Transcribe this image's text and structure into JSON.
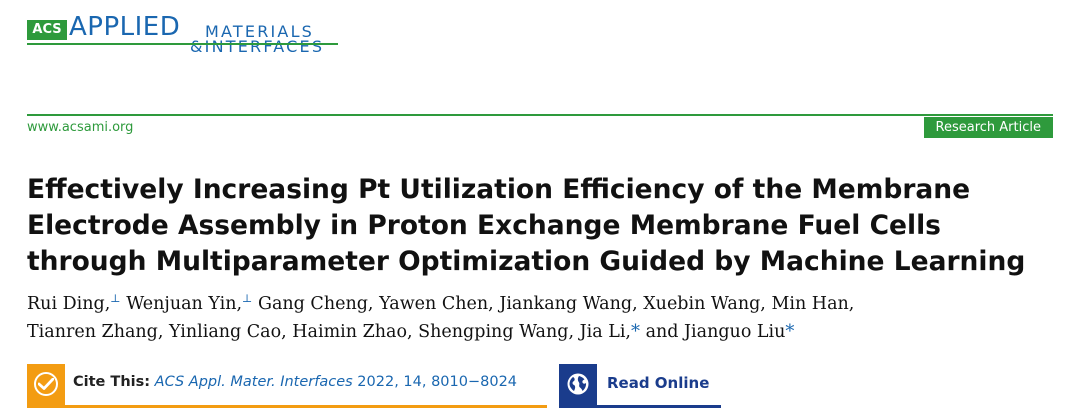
{
  "journal": {
    "badge": "ACS",
    "name_main": "APPLIED",
    "name_line1": "MATERIALS",
    "name_line2": "&INTERFACES",
    "brand_green": "#2e9a3c",
    "brand_blue": "#1a67b0"
  },
  "header": {
    "url": "www.acsami.org",
    "article_type": "Research Article"
  },
  "article": {
    "title_lines": [
      "Effectively Increasing Pt Utilization Efficiency of the Membrane",
      "Electrode Assembly in Proton Exchange Membrane Fuel Cells",
      "through Multiparameter Optimization Guided by Machine Learning"
    ],
    "authors": [
      {
        "name": "Rui Ding,",
        "mark": "⊥"
      },
      {
        "name": "Wenjuan Yin,",
        "mark": "⊥"
      },
      {
        "name": "Gang Cheng,",
        "mark": ""
      },
      {
        "name": "Yawen Chen,",
        "mark": ""
      },
      {
        "name": "Jiankang Wang,",
        "mark": ""
      },
      {
        "name": "Xuebin Wang,",
        "mark": ""
      },
      {
        "name": "Min Han,",
        "mark": ""
      },
      {
        "name": "Tianren Zhang,",
        "mark": ""
      },
      {
        "name": "Yinliang Cao,",
        "mark": ""
      },
      {
        "name": "Haimin Zhao,",
        "mark": ""
      },
      {
        "name": "Shengping Wang,",
        "mark": ""
      },
      {
        "name": "Jia Li,",
        "mark": "*"
      },
      {
        "name": "and Jianguo Liu",
        "mark": "*"
      }
    ]
  },
  "cite": {
    "label": "Cite This:",
    "journal": "ACS Appl. Mater. Interfaces",
    "details": " 2022, 14, 8010−8024",
    "accent": "#f39c12"
  },
  "read_online": {
    "label": "Read Online",
    "accent": "#1a3c8c"
  }
}
